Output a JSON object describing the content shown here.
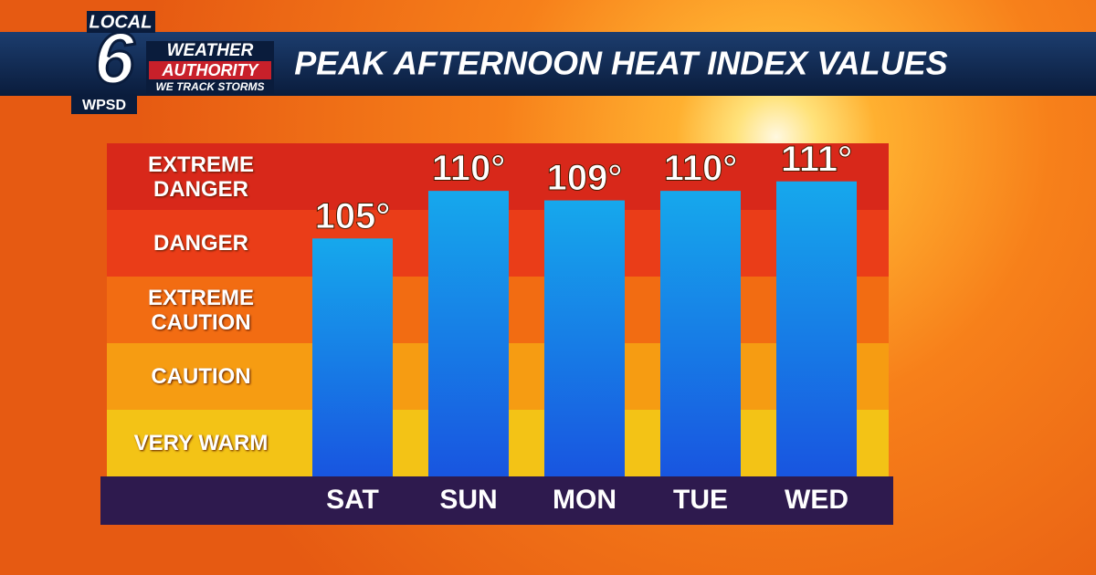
{
  "logo": {
    "local": "LOCAL",
    "number": "6",
    "weather": "WEATHER",
    "authority": "AUTHORITY",
    "tagline": "WE TRACK STORMS",
    "station": "WPSD"
  },
  "chart_data": {
    "type": "bar",
    "title": "PEAK AFTERNOON HEAT INDEX VALUES",
    "zones": [
      "EXTREME DANGER",
      "DANGER",
      "EXTREME CAUTION",
      "CAUTION",
      "VERY WARM"
    ],
    "zone_colors": [
      "#d8281a",
      "#ea3d18",
      "#f26c12",
      "#f69c12",
      "#f3c316"
    ],
    "categories": [
      "SAT",
      "SUN",
      "MON",
      "TUE",
      "WED"
    ],
    "values": [
      105,
      110,
      109,
      110,
      111
    ],
    "value_labels": [
      "105°",
      "110°",
      "109°",
      "110°",
      "111°"
    ],
    "ylim": [
      80,
      115
    ]
  }
}
